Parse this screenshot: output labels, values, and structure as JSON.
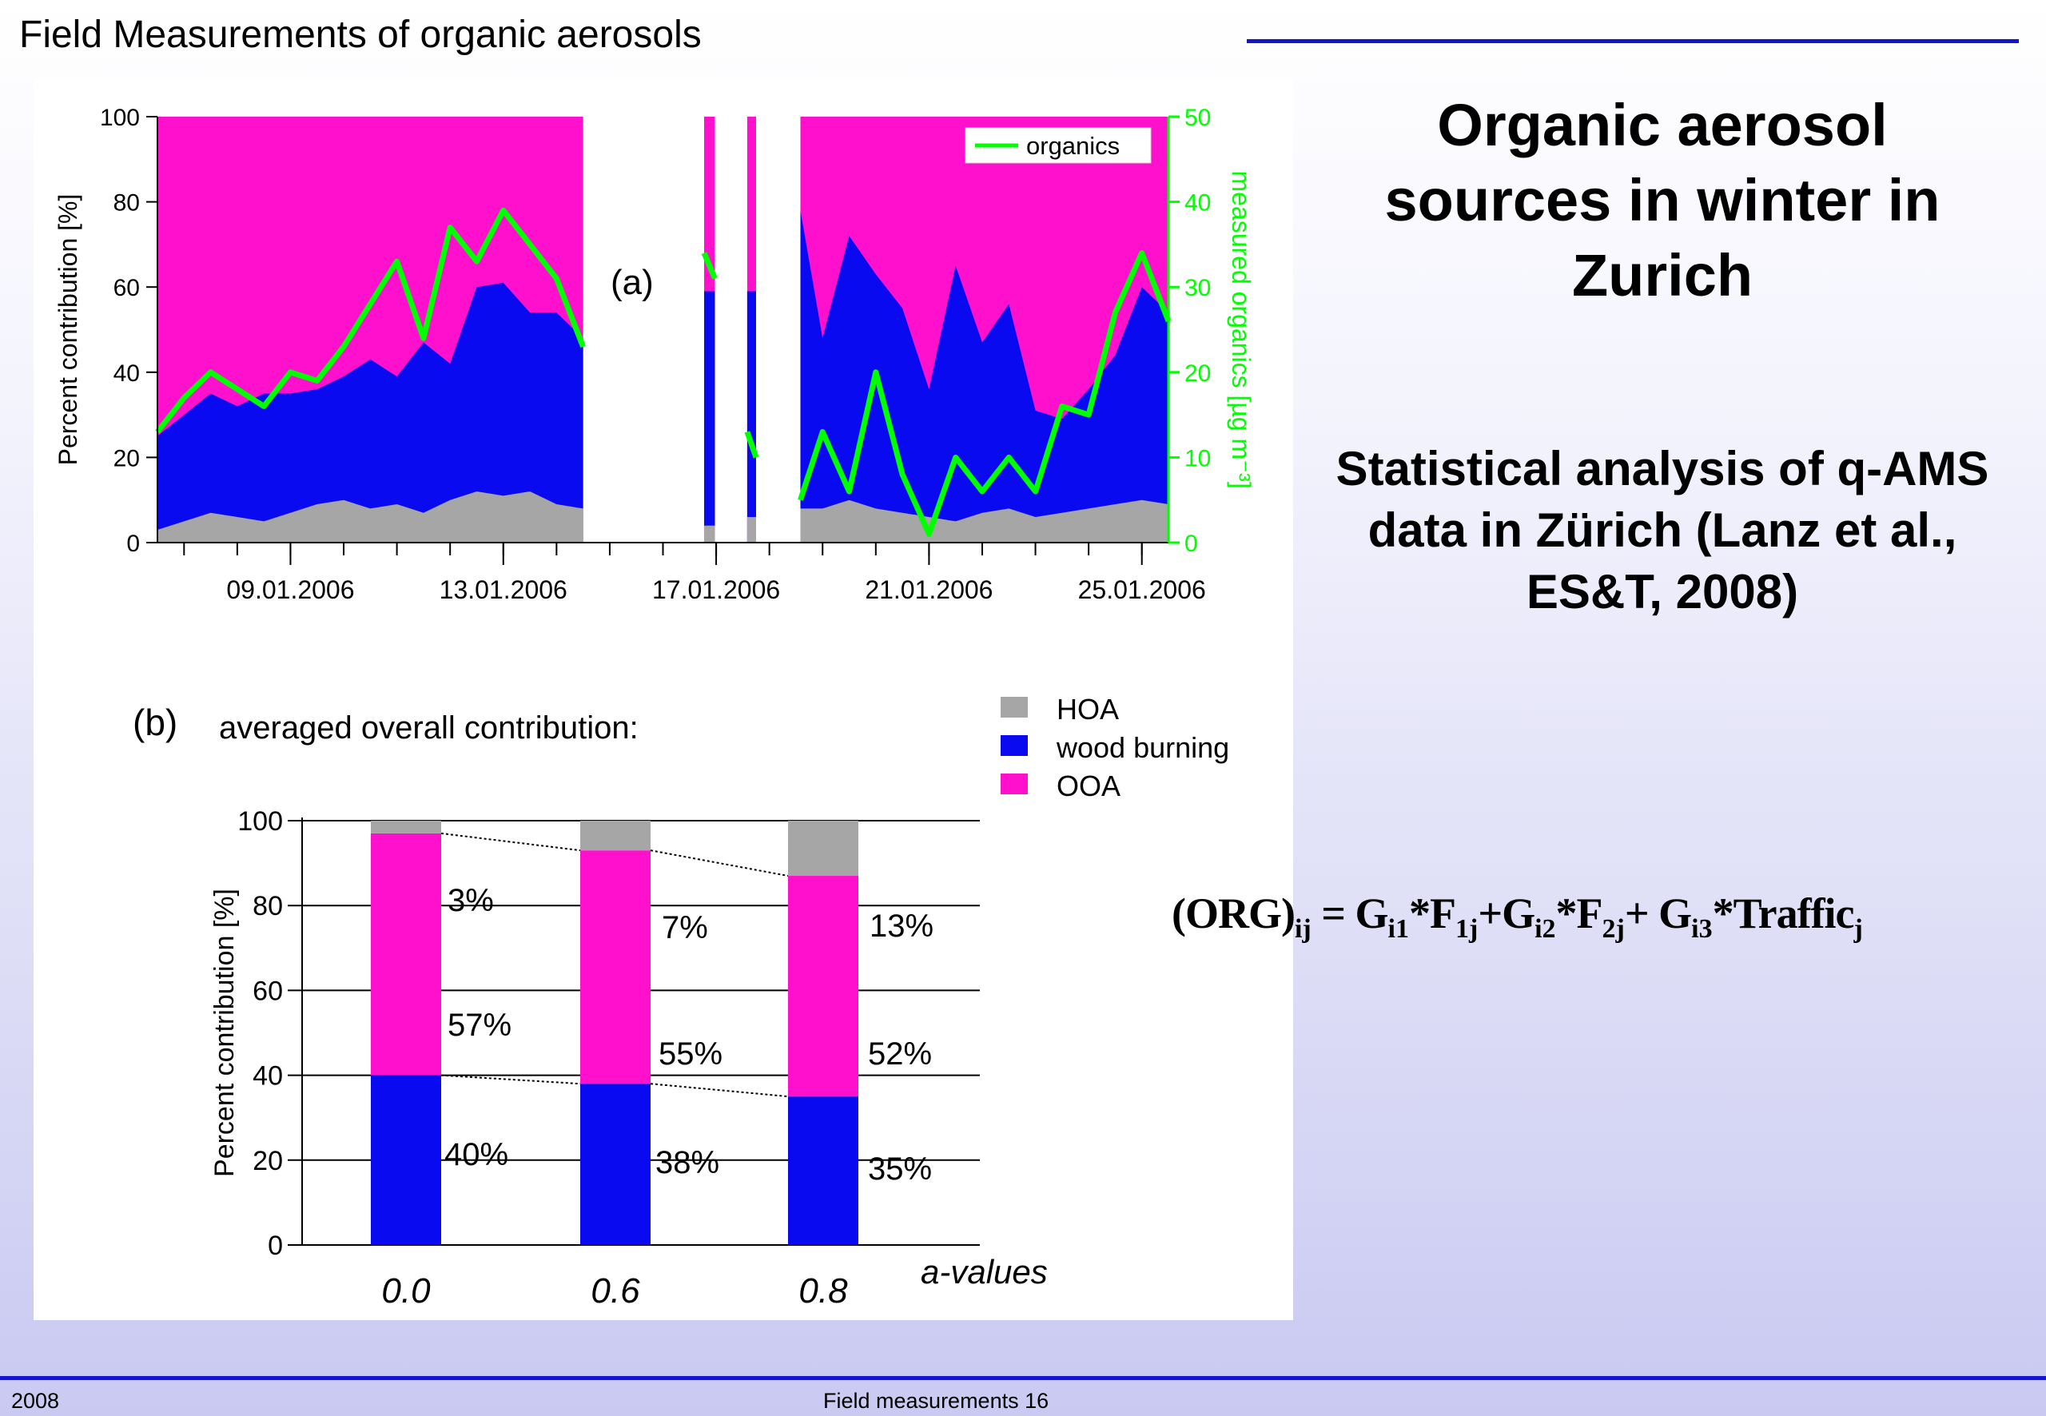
{
  "header": {
    "title": "Field Measurements of organic aerosols"
  },
  "main_title": "Organic aerosol sources in winter in Zurich",
  "subtitle": "Statistical analysis of q-AMS data in Zürich (Lanz et al., ES&T, 2008)",
  "equation": {
    "parts": [
      {
        "t": "(ORG)"
      },
      {
        "s": "ij"
      },
      {
        "t": " = G"
      },
      {
        "s": "i1"
      },
      {
        "t": "*F"
      },
      {
        "s": "1j"
      },
      {
        "t": "+G"
      },
      {
        "s": "i2"
      },
      {
        "t": "*F"
      },
      {
        "s": "2j"
      },
      {
        "t": "+ G"
      },
      {
        "s": "i3"
      },
      {
        "t": "*Traffic"
      },
      {
        "s": "j"
      }
    ]
  },
  "footer": {
    "left": "2008",
    "center": "Field measurements 16"
  },
  "colors": {
    "HOA": "#a6a6a6",
    "wood_burning": "#0a0af0",
    "OOA": "#ff10cc",
    "organics": "#00ff00",
    "accent_line": "#1414c8"
  },
  "chart_data": [
    {
      "type": "area",
      "panel_label": "(a)",
      "ylabel": "Percent contribution [%]",
      "y2label": "measured organics [µg m⁻³]",
      "ylim": [
        0,
        100
      ],
      "y2lim": [
        0,
        50
      ],
      "yticks": [
        0,
        20,
        40,
        60,
        80,
        100
      ],
      "y2ticks": [
        0,
        10,
        20,
        30,
        40,
        50
      ],
      "xlim": [
        "2006-01-06T12:00",
        "2006-01-25T12:00"
      ],
      "xtick_labels": [
        "09.01.2006",
        "13.01.2006",
        "17.01.2006",
        "21.01.2006",
        "25.01.2006"
      ],
      "xtick_dates": [
        "2006-01-09",
        "2006-01-13",
        "2006-01-17",
        "2006-01-21",
        "2006-01-25"
      ],
      "stack_order": [
        "HOA",
        "wood burning",
        "OOA"
      ],
      "legend": {
        "entries": [
          "organics"
        ],
        "position": "top-right"
      },
      "segments": [
        {
          "date": [
            "2006-01-06T12:00",
            "2006-01-07T00:00",
            "2006-01-07T12:00",
            "2006-01-08T00:00",
            "2006-01-08T12:00",
            "2006-01-09T00:00",
            "2006-01-09T12:00",
            "2006-01-10T00:00",
            "2006-01-10T12:00",
            "2006-01-11T00:00",
            "2006-01-11T12:00",
            "2006-01-12T00:00",
            "2006-01-12T12:00",
            "2006-01-13T00:00",
            "2006-01-13T12:00",
            "2006-01-14T00:00",
            "2006-01-14T12:00"
          ],
          "HOA": [
            3,
            5,
            7,
            6,
            5,
            7,
            9,
            10,
            8,
            9,
            7,
            10,
            12,
            11,
            12,
            9,
            8
          ],
          "wood_burning": [
            22,
            25,
            28,
            26,
            30,
            28,
            27,
            29,
            35,
            30,
            40,
            32,
            48,
            50,
            42,
            45,
            40
          ],
          "organics": [
            13,
            17,
            20,
            18,
            16,
            20,
            19,
            23,
            28,
            33,
            24,
            37,
            33,
            39,
            35,
            31,
            23
          ]
        },
        {
          "date": [
            "2006-01-16T20:00",
            "2006-01-16T22:00"
          ],
          "HOA": [
            4,
            4
          ],
          "wood_burning": [
            55,
            55
          ],
          "organics": [
            34,
            31
          ]
        },
        {
          "date": [
            "2006-01-17T14:00",
            "2006-01-17T18:00"
          ],
          "HOA": [
            6,
            6
          ],
          "wood_burning": [
            53,
            53
          ],
          "organics": [
            13,
            10
          ]
        },
        {
          "date": [
            "2006-01-18T14:00",
            "2006-01-19T00:00",
            "2006-01-19T12:00",
            "2006-01-20T00:00",
            "2006-01-20T12:00",
            "2006-01-21T00:00",
            "2006-01-21T12:00",
            "2006-01-22T00:00",
            "2006-01-22T12:00",
            "2006-01-23T00:00",
            "2006-01-23T12:00",
            "2006-01-24T00:00",
            "2006-01-24T12:00",
            "2006-01-25T00:00",
            "2006-01-25T12:00"
          ],
          "HOA": [
            8,
            8,
            10,
            8,
            7,
            6,
            5,
            7,
            8,
            6,
            7,
            8,
            9,
            10,
            9
          ],
          "wood_burning": [
            70,
            40,
            62,
            55,
            48,
            30,
            60,
            40,
            48,
            25,
            22,
            28,
            35,
            50,
            45
          ],
          "organics": [
            5,
            13,
            6,
            20,
            8,
            1,
            10,
            6,
            10,
            6,
            16,
            15,
            27,
            34,
            26
          ]
        }
      ]
    },
    {
      "type": "bar",
      "panel_label": "(b)",
      "title": "averaged overall contribution:",
      "ylabel": "Percent contribution [%]",
      "xlabel": "a-values",
      "categories": [
        "0.0",
        "0.6",
        "0.8"
      ],
      "ylim": [
        0,
        100
      ],
      "yticks": [
        0,
        20,
        40,
        60,
        80,
        100
      ],
      "stacked": true,
      "series": [
        {
          "name": "wood burning",
          "values": [
            40,
            38,
            35
          ],
          "labels": [
            "40%",
            "38%",
            "35%"
          ]
        },
        {
          "name": "OOA",
          "values": [
            57,
            55,
            52
          ],
          "labels": [
            "57%",
            "55%",
            "52%"
          ]
        },
        {
          "name": "HOA",
          "values": [
            3,
            7,
            13
          ],
          "labels": [
            "3%",
            "7%",
            "13%"
          ]
        }
      ],
      "legend": {
        "entries": [
          "HOA",
          "wood burning",
          "OOA"
        ],
        "position": "top-right"
      }
    }
  ]
}
